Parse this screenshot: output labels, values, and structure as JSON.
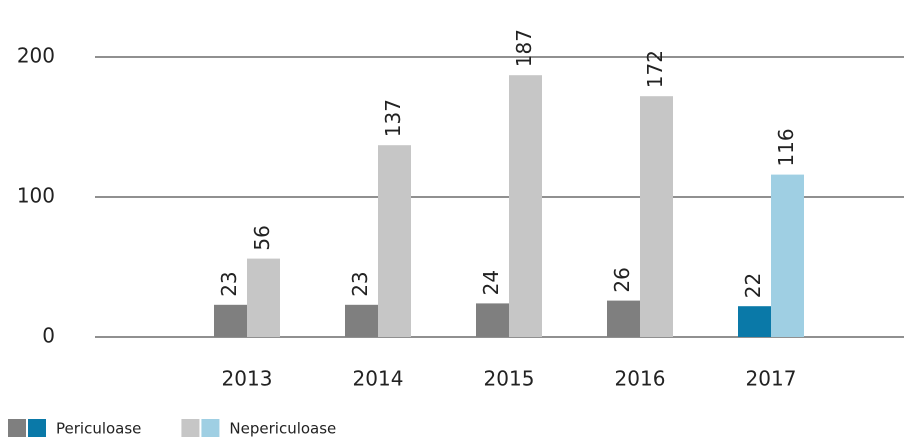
{
  "chart_data": {
    "type": "bar",
    "categories": [
      "2013",
      "2014",
      "2015",
      "2016",
      "2017"
    ],
    "series": [
      {
        "name": "Periculoase",
        "colors": [
          "#7f7f7f",
          "#7f7f7f",
          "#7f7f7f",
          "#7f7f7f",
          "#0a79a8"
        ],
        "values": [
          23,
          23,
          24,
          26,
          22
        ]
      },
      {
        "name": "Nepericuloase",
        "colors": [
          "#c6c6c6",
          "#c6c6c6",
          "#c6c6c6",
          "#c6c6c6",
          "#9fcfe3"
        ],
        "values": [
          56,
          137,
          187,
          172,
          116
        ]
      }
    ],
    "ylim": [
      0,
      200
    ],
    "yticks": [
      0,
      100,
      200
    ],
    "grid": true,
    "legend": "bottom-left"
  }
}
